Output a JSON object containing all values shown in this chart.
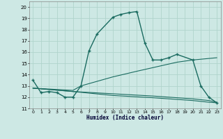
{
  "title": "",
  "xlabel": "Humidex (Indice chaleur)",
  "bg_color": "#cde8e4",
  "grid_color": "#b0d4cc",
  "line_color": "#1a6b60",
  "xlim": [
    -0.5,
    23.5
  ],
  "ylim": [
    11,
    20.5
  ],
  "yticks": [
    11,
    12,
    13,
    14,
    15,
    16,
    17,
    18,
    19,
    20
  ],
  "xticks": [
    0,
    1,
    2,
    3,
    4,
    5,
    6,
    7,
    8,
    9,
    10,
    11,
    12,
    13,
    14,
    15,
    16,
    17,
    18,
    19,
    20,
    21,
    22,
    23
  ],
  "line1_x": [
    0,
    1,
    2,
    3,
    4,
    5,
    6,
    7,
    8,
    10,
    11,
    12,
    13,
    14,
    15,
    16,
    17,
    18,
    20,
    21,
    22,
    23
  ],
  "line1_y": [
    13.5,
    12.4,
    12.5,
    12.4,
    12.0,
    12.0,
    13.0,
    16.1,
    17.6,
    19.1,
    19.35,
    19.5,
    19.6,
    16.8,
    15.3,
    15.3,
    15.5,
    15.8,
    15.3,
    13.0,
    12.0,
    11.5
  ],
  "line2_x": [
    0,
    5,
    6,
    10,
    13,
    18,
    20,
    23
  ],
  "line2_y": [
    12.8,
    12.6,
    13.0,
    13.8,
    14.3,
    15.1,
    15.3,
    15.5
  ],
  "line3_x": [
    0,
    5,
    10,
    15,
    19,
    20,
    22,
    23
  ],
  "line3_y": [
    12.8,
    12.5,
    12.3,
    12.1,
    11.9,
    11.85,
    11.7,
    11.55
  ],
  "line4_x": [
    0,
    5,
    10,
    15,
    19,
    20,
    22,
    23
  ],
  "line4_y": [
    12.8,
    12.5,
    12.15,
    11.95,
    11.75,
    11.7,
    11.55,
    11.5
  ]
}
